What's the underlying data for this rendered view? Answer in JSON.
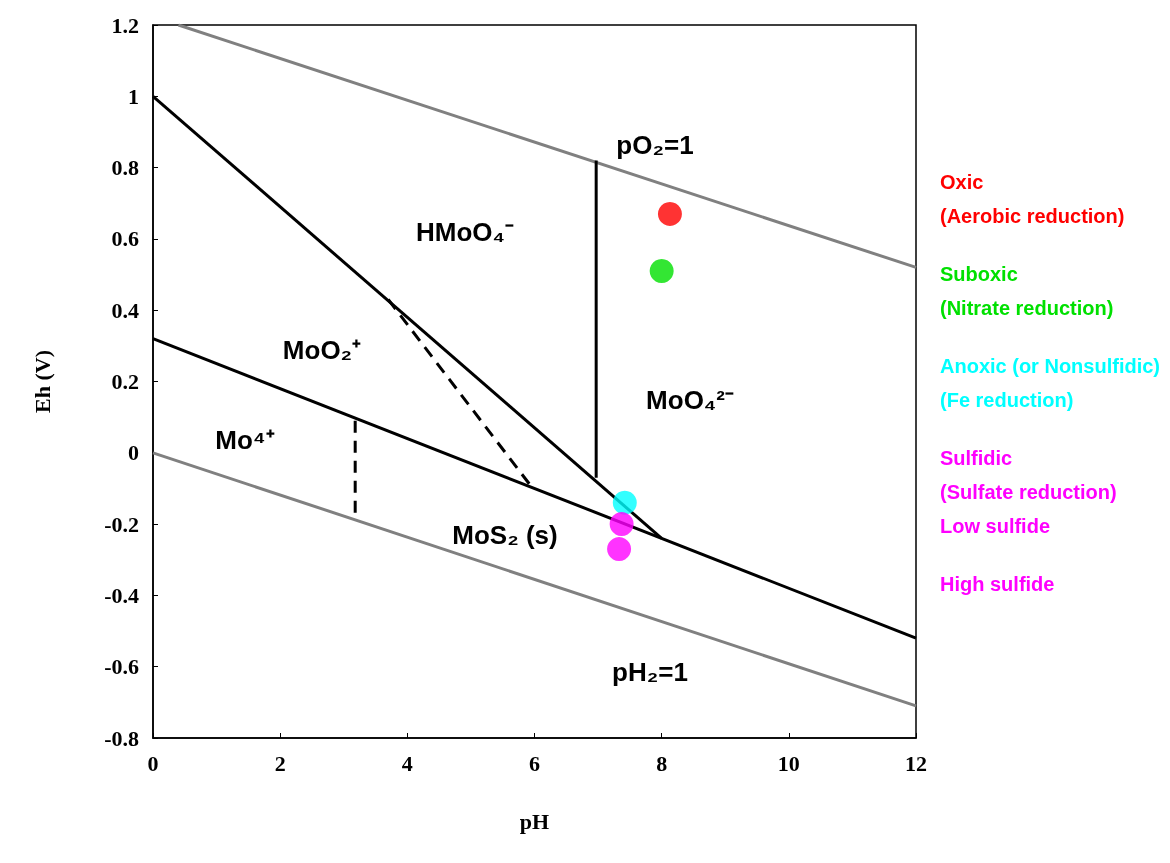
{
  "chart_data": {
    "type": "line",
    "xlabel": "pH",
    "ylabel": "Eh (V)",
    "xlim": [
      0,
      12
    ],
    "xticks": [
      0,
      2,
      4,
      6,
      8,
      10,
      12
    ],
    "ylim": [
      -0.8,
      1.2
    ],
    "yticks": [
      -0.8,
      -0.6,
      -0.4,
      -0.2,
      0,
      0.2,
      0.4,
      0.6,
      0.8,
      1,
      1.2
    ],
    "grid": false,
    "legend": "right",
    "marker": "none",
    "series": [
      {
        "color": "#808080",
        "x": [
          0.4,
          12
        ],
        "values": [
          1.2,
          0.52
        ]
      },
      {
        "color": "#808080",
        "x": [
          0,
          12
        ],
        "values": [
          0,
          -0.71
        ]
      },
      {
        "color": "#000000",
        "x": [
          0,
          8
        ],
        "values": [
          1,
          -0.24
        ]
      },
      {
        "color": "#000000",
        "x": [
          0,
          12
        ],
        "values": [
          0.32,
          -0.52
        ]
      },
      {
        "color": "#000000",
        "x": [
          6.97,
          6.97
        ],
        "values": [
          -0.07,
          0.82
        ]
      },
      {
        "color": "#000000",
        "line_style": "dashed",
        "x": [
          3.7,
          5.93
        ],
        "values": [
          0.43,
          -0.09
        ]
      },
      {
        "color": "#000000",
        "line_style": "dashed",
        "x": [
          3.18,
          3.18
        ],
        "values": [
          0.09,
          -0.19
        ]
      },
      {
        "type": "scatter",
        "marker": "circle",
        "name": "Oxic\n(Aerobic reduction)",
        "color": "#ff0000",
        "x": [
          8.13
        ],
        "values": [
          0.67
        ]
      },
      {
        "type": "scatter",
        "marker": "circle",
        "name": "Suboxic\n(Nitrate reduction)",
        "color": "#00e000",
        "x": [
          8.0
        ],
        "values": [
          0.51
        ]
      },
      {
        "type": "scatter",
        "marker": "circle",
        "name": "Anoxic (or Nonsulfidic)\n(Fe reduction)",
        "color": "#00ffff",
        "x": [
          7.42
        ],
        "values": [
          -0.14
        ]
      },
      {
        "type": "scatter",
        "marker": "circle",
        "name": "Sulfidic\n(Sulfate reduction)\nLow sulfide",
        "color": "#ff00ff",
        "x": [
          7.37
        ],
        "values": [
          -0.2
        ]
      },
      {
        "type": "scatter",
        "marker": "circle",
        "name": "High sulfide",
        "color": "#ff00ff",
        "x": [
          7.33
        ],
        "values": [
          -0.27
        ]
      }
    ],
    "annotations": [
      "pO₂=1",
      "pH₂=1",
      "HMoO₄⁻",
      "MoO₂⁺",
      "MoO₄²⁻",
      "Mo⁴⁺",
      "MoS₂ (s)"
    ]
  }
}
